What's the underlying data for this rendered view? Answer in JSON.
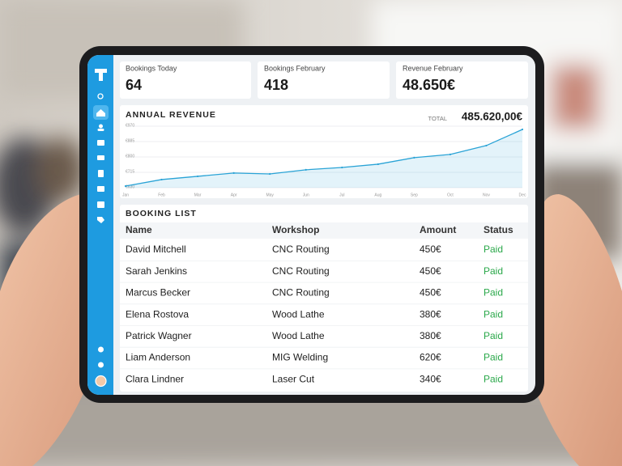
{
  "stats": [
    {
      "label": "Bookings Today",
      "value": "64"
    },
    {
      "label": "Bookings February",
      "value": "418"
    },
    {
      "label": "Revenue February",
      "value": "48.650€"
    }
  ],
  "chart_data": {
    "type": "line",
    "title": "ANNUAL REVENUE",
    "total_label": "TOTAL",
    "total": "485.620,00€",
    "categories": [
      "Jan",
      "Feb",
      "Mar",
      "Apr",
      "May",
      "Jun",
      "Jul",
      "Aug",
      "Sep",
      "Oct",
      "Nov",
      "Dec"
    ],
    "values": [
      639,
      675,
      693,
      711,
      706,
      729,
      742,
      760,
      796,
      814,
      863,
      952
    ],
    "color": "#29a3d6",
    "ylim": [
      630,
      970
    ],
    "yticks": [
      {
        "value": 630,
        "label": "€630"
      },
      {
        "value": 715,
        "label": "€715"
      },
      {
        "value": 800,
        "label": "€800"
      },
      {
        "value": 885,
        "label": "€885"
      },
      {
        "value": 970,
        "label": "€970"
      }
    ],
    "grid": true
  },
  "booking_list": {
    "title": "BOOKING LIST",
    "columns": [
      "Name",
      "Workshop",
      "Amount",
      "Status"
    ],
    "rows": [
      [
        "David Mitchell",
        "CNC Routing",
        "450€",
        "Paid"
      ],
      [
        "Sarah Jenkins",
        "CNC Routing",
        "450€",
        "Paid"
      ],
      [
        "Marcus Becker",
        "CNC Routing",
        "450€",
        "Paid"
      ],
      [
        "Elena Rostova",
        "Wood Lathe",
        "380€",
        "Paid"
      ],
      [
        "Patrick Wagner",
        "Wood Lathe",
        "380€",
        "Paid"
      ],
      [
        "Liam Anderson",
        "MIG Welding",
        "620€",
        "Paid"
      ],
      [
        "Clara Lindner",
        "Laser Cut",
        "340€",
        "Paid"
      ]
    ]
  }
}
